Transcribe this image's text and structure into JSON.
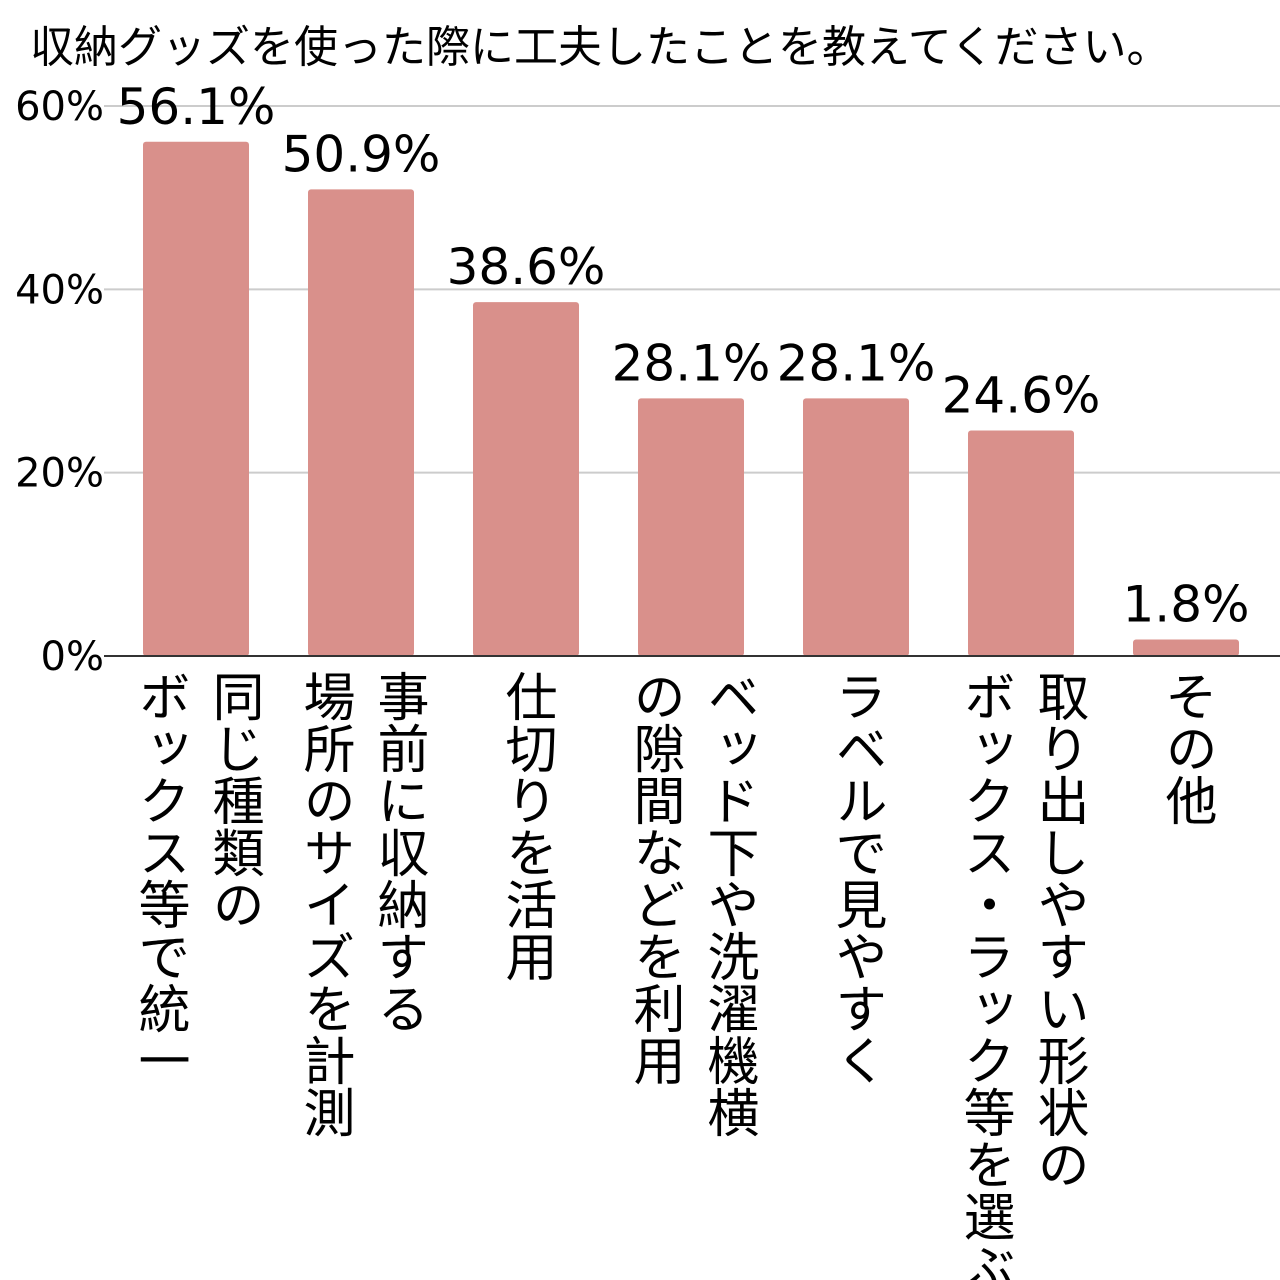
{
  "chart_data": {
    "type": "bar",
    "title": "収納グッズを使った際に工夫したことを教えてください。",
    "xlabel": "",
    "ylabel": "",
    "ylim": [
      0,
      60
    ],
    "yticks": [
      "0%",
      "20%",
      "40%",
      "60%"
    ],
    "grid": true,
    "bar_color": "#d9908b",
    "categories": [
      {
        "lines": [
          "同じ種類の",
          "ボックス等で統一"
        ]
      },
      {
        "lines": [
          "事前に収納する",
          "場所のサイズを計測"
        ]
      },
      {
        "lines": [
          "仕切りを活用"
        ]
      },
      {
        "lines": [
          "ベッド下や洗濯機横",
          "の隙間などを利用"
        ]
      },
      {
        "lines": [
          "ラベルで見やすく"
        ]
      },
      {
        "lines": [
          "取り出しやすい形状の",
          "ボックス・ラック等を選ぶ"
        ]
      },
      {
        "lines": [
          "その他"
        ]
      }
    ],
    "values": [
      56.1,
      50.9,
      38.6,
      28.1,
      28.1,
      24.6,
      1.8
    ],
    "value_labels": [
      "56.1%",
      "50.9%",
      "38.6%",
      "28.1%",
      "28.1%",
      "24.6%",
      "1.8%"
    ]
  }
}
